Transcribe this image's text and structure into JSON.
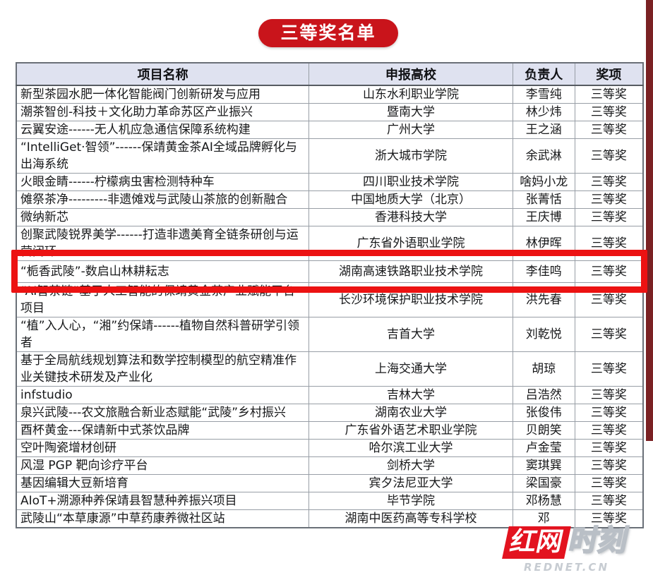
{
  "title_badge": {
    "text": "三等奖名单",
    "bg_color": "#c9141b",
    "text_color": "#ffffff"
  },
  "table": {
    "headers": [
      "项目名称",
      "申报高校",
      "负责人",
      "奖项"
    ],
    "header_bg": "#dfe2f0",
    "rows": [
      {
        "project": "新型茶园水肥一体化智能阀门创新研发与应用",
        "university": "山东水利职业学院",
        "leader": "李雪纯",
        "award": "三等奖",
        "highlighted": false
      },
      {
        "project": "潮茶智创-科技＋文化助力革命苏区产业振兴",
        "university": "暨南大学",
        "leader": "林少炜",
        "award": "三等奖",
        "highlighted": false
      },
      {
        "project": "云翼安途------无人机应急通信保障系统构建",
        "university": "广州大学",
        "leader": "王之涵",
        "award": "三等奖",
        "highlighted": false
      },
      {
        "project": "“IntelliGet·智领”------保靖黄金茶AI全域品牌孵化与出海系统",
        "university": "浙大城市学院",
        "leader": "余武淋",
        "award": "三等奖",
        "highlighted": false
      },
      {
        "project": "火眼金睛------柠檬病虫害检测特种车",
        "university": "四川职业技术学院",
        "leader": "啥妈小龙",
        "award": "三等奖",
        "highlighted": false
      },
      {
        "project": "傩祭茶净---------非遗傩戏与武陵山茶旅的创新融合",
        "university": "中国地质大学（北京）",
        "leader": "张菁恬",
        "award": "三等奖",
        "highlighted": false
      },
      {
        "project": "微纳新芯",
        "university": "香港科技大学",
        "leader": "王庆博",
        "award": "三等奖",
        "highlighted": false
      },
      {
        "project": "创聚武陵锐界美学------打造非遗美育全链条研创与运营闭环",
        "university": "广东省外语职业学院",
        "leader": "林伊晖",
        "award": "三等奖",
        "highlighted": false
      },
      {
        "project": "“栀香武陵”-数启山林耕耘志",
        "university": "湖南高速铁路职业技术学院",
        "leader": "李佳鸣",
        "award": "三等奖",
        "highlighted": true
      },
      {
        "project": "“AI智茶链”基于人工智能的保靖黄金茶产业赋能平台项目",
        "university": "长沙环境保护职业技术学院",
        "leader": "洪先春",
        "award": "三等奖",
        "highlighted": false
      },
      {
        "project": "“植”入人心，“湘”约保靖------植物自然科普研学引领者",
        "university": "吉首大学",
        "leader": "刘乾悦",
        "award": "三等奖",
        "highlighted": false
      },
      {
        "project": "基于全局航线规划算法和数学控制模型的航空精准作业关键技术研发及产业化",
        "university": "上海交通大学",
        "leader": "胡琼",
        "award": "三等奖",
        "highlighted": false
      },
      {
        "project": "infstudio",
        "university": "吉林大学",
        "leader": "吕浩然",
        "award": "三等奖",
        "highlighted": false
      },
      {
        "project": "泉兴武陵---农文旅融合新业态赋能“武陵”乡村振兴",
        "university": "湖南农业大学",
        "leader": "张俊伟",
        "award": "三等奖",
        "highlighted": false
      },
      {
        "project": "酉杯黄金---保靖新中式茶饮品牌",
        "university": "广东省外语艺术职业学院",
        "leader": "贝朗笑",
        "award": "三等奖",
        "highlighted": false
      },
      {
        "project": "空叶陶瓷增材创研",
        "university": "哈尔滨工业大学",
        "leader": "卢金莹",
        "award": "三等奖",
        "highlighted": false
      },
      {
        "project": "风湿 PGP 靶向诊疗平台",
        "university": "剑桥大学",
        "leader": "窦琪巽",
        "award": "三等奖",
        "highlighted": false
      },
      {
        "project": "基因编辑大豆新培育",
        "university": "宾夕法尼亚大学",
        "leader": "梁国豪",
        "award": "三等奖",
        "highlighted": false
      },
      {
        "project": "AIoT+溯源种养保靖县智慧种养振兴项目",
        "university": "毕节学院",
        "leader": "邓杨慧",
        "award": "三等奖",
        "highlighted": false
      },
      {
        "project": "武陵山“本草康源”中草药康养微社区站",
        "university": "湖南中医药高等专科学校",
        "leader": "邓",
        "award": "三等奖",
        "highlighted": false
      }
    ]
  },
  "highlight_box": {
    "border_color": "#ec1212"
  },
  "right_bar": {
    "color": "#7a2123"
  },
  "watermark": {
    "cn_part1": "红网",
    "cn_part2": "时刻",
    "domain": "REDNET.CN",
    "red": "#e3131f"
  }
}
